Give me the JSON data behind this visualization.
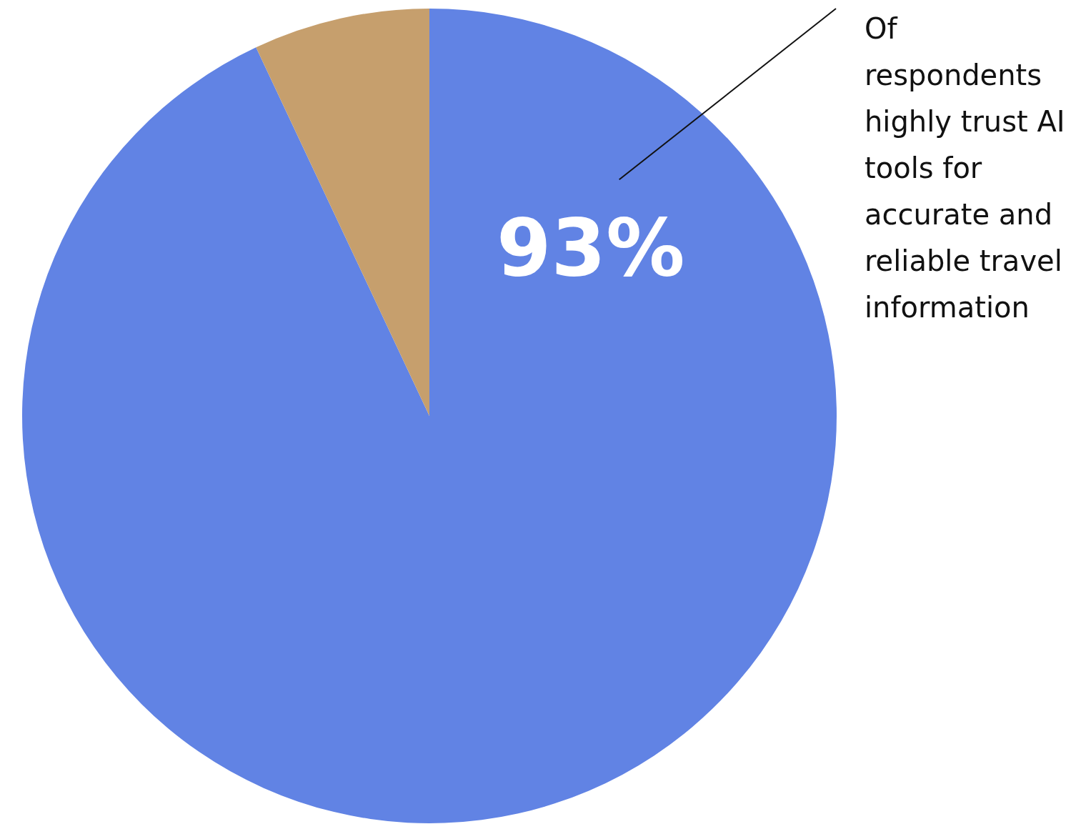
{
  "chart_data": {
    "type": "pie",
    "categories": [
      null,
      null
    ],
    "values": [
      93,
      7
    ],
    "colors": [
      "#6183e4",
      "#c69f6d"
    ],
    "value_labels": [
      "93%",
      null
    ],
    "annotations": [
      "Of respondents highly trust AI tools for accurate and reliable travel information"
    ],
    "legend": false
  }
}
